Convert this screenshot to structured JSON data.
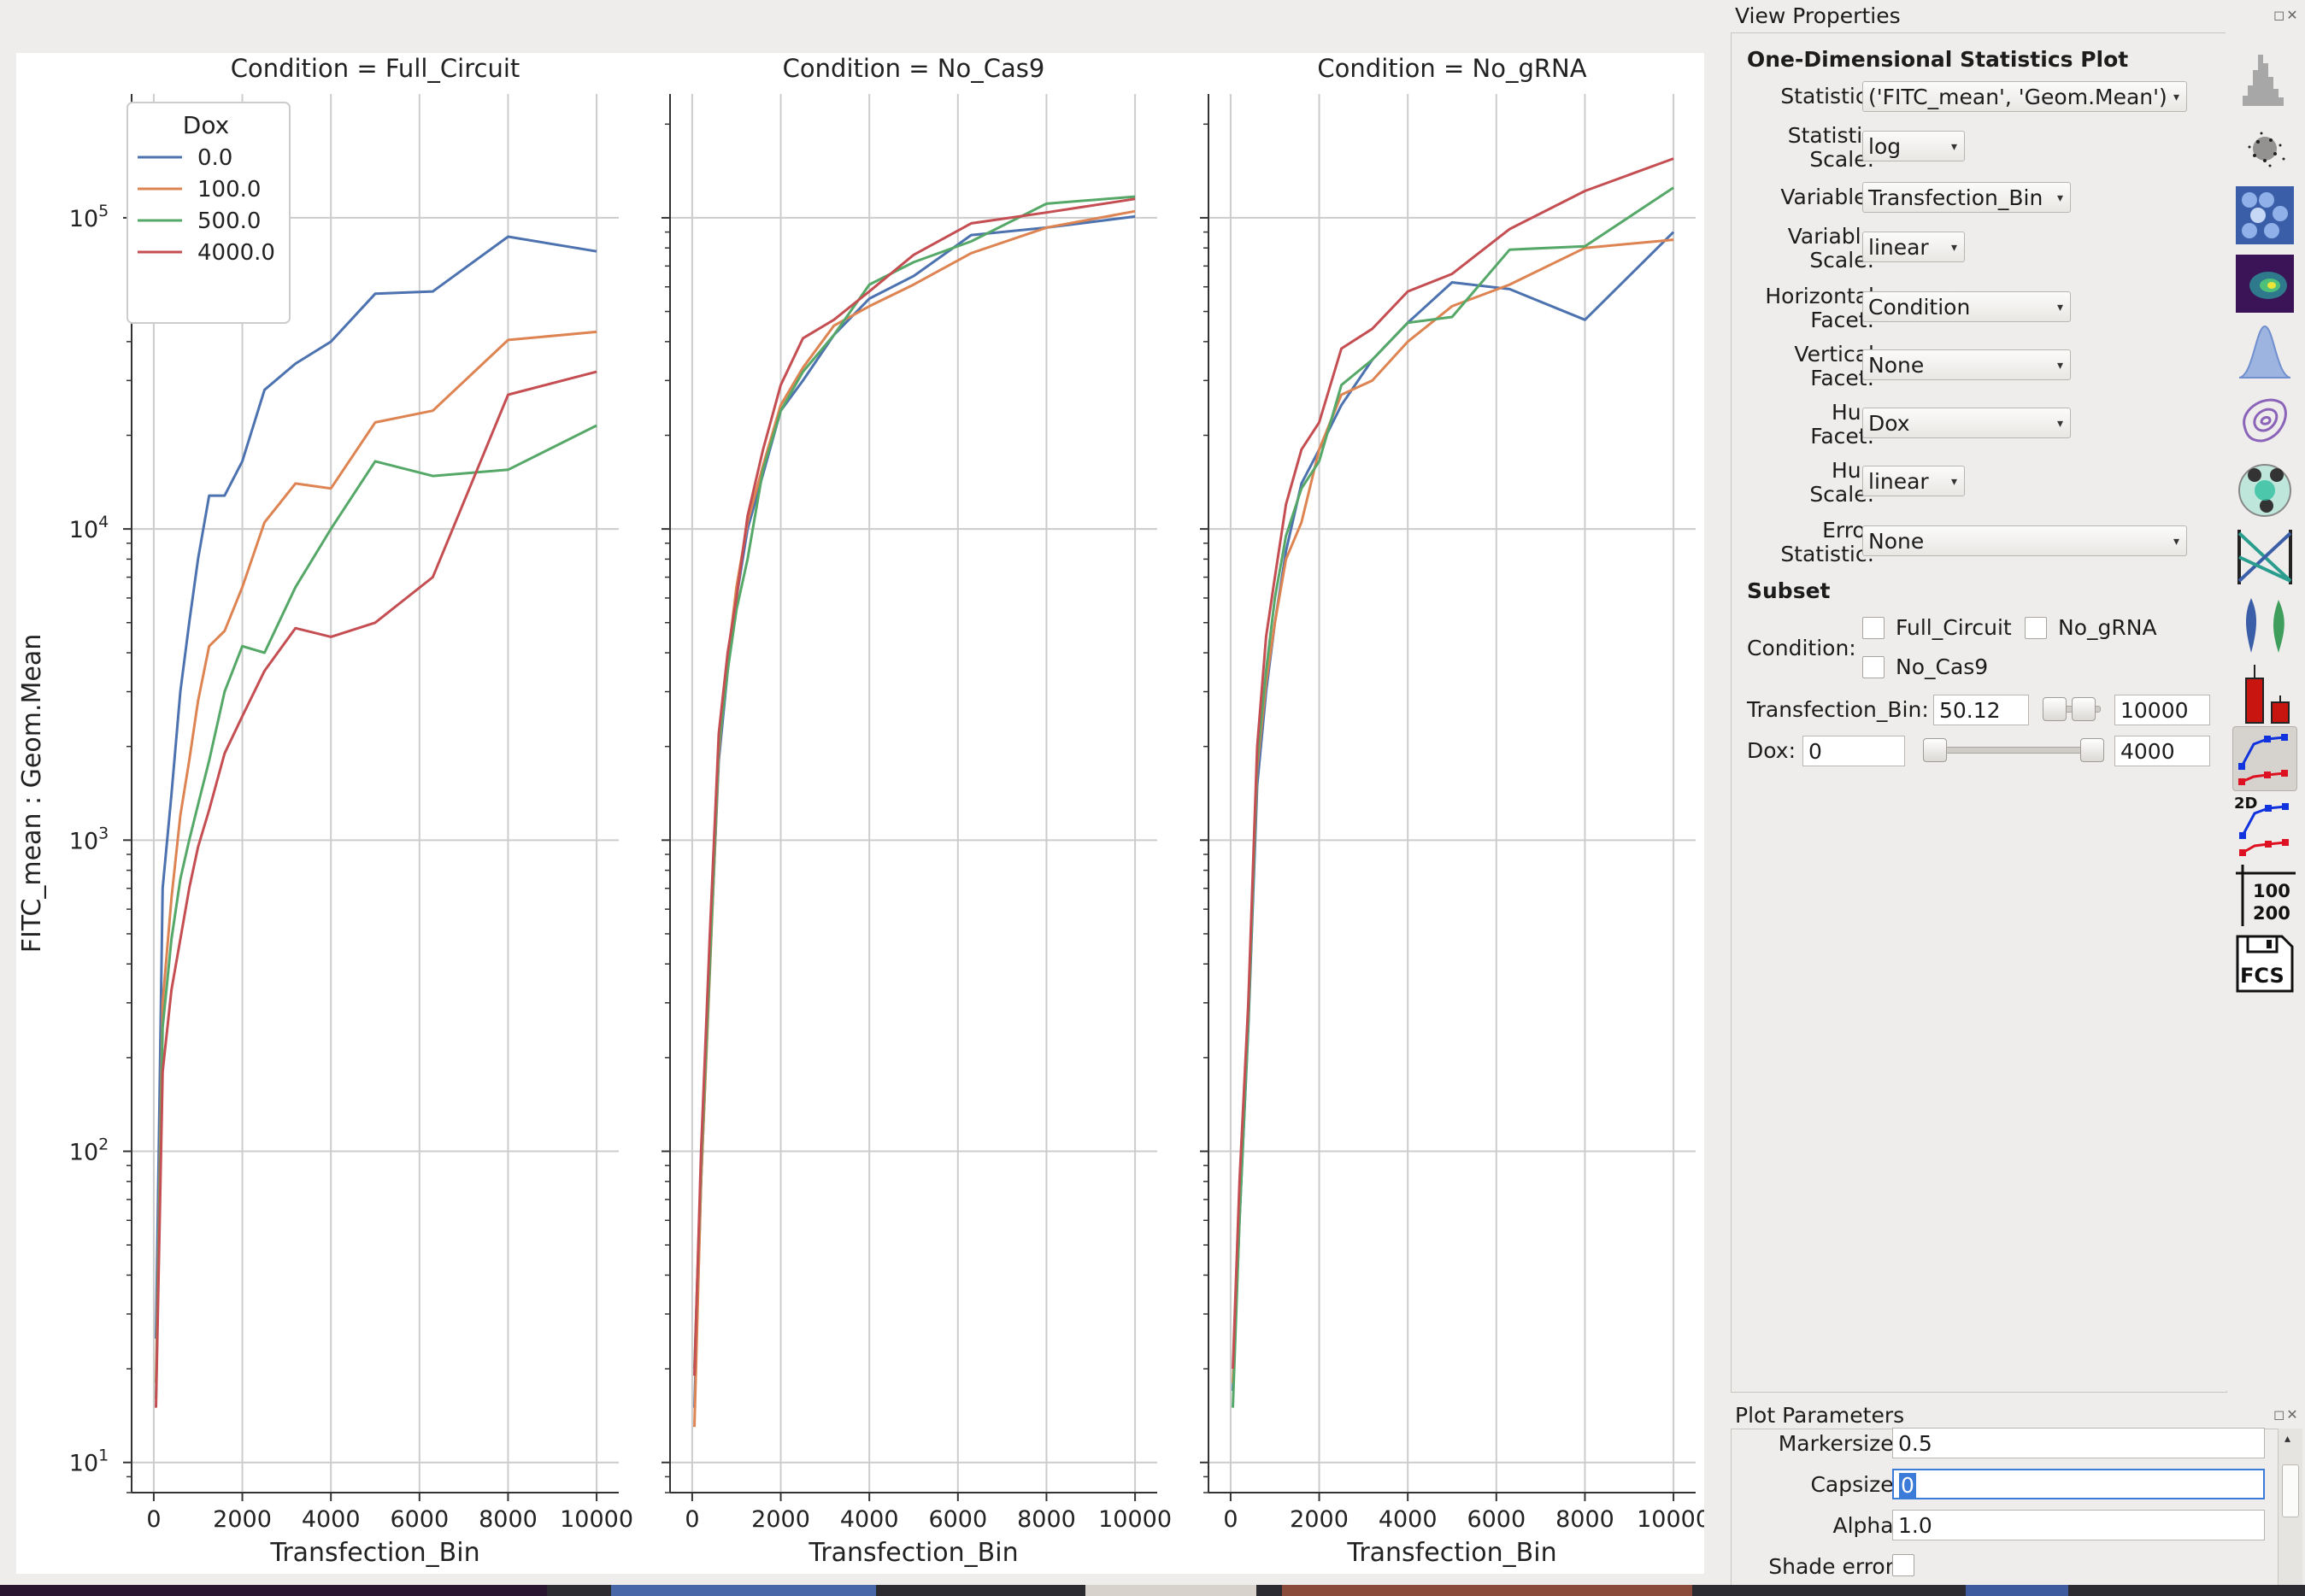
{
  "colors": {
    "series_0": "#4c72b0",
    "series_100": "#dd8452",
    "series_500": "#55a868",
    "series_4000": "#c44e52",
    "grid": "#cccccc",
    "accent": "#3d7bd8"
  },
  "chart_data": [
    {
      "type": "line",
      "title": "Condition = Full_Circuit",
      "xlabel": "Transfection_Bin",
      "ylabel": "FITC_mean : Geom.Mean",
      "yscale": "log",
      "xlim": [
        -500,
        10500
      ],
      "ylim": [
        8,
        250000
      ],
      "x_ticks": [
        "0",
        "2000",
        "4000",
        "6000",
        "8000",
        "10000"
      ],
      "y_ticks": [
        "10^1",
        "10^2",
        "10^3",
        "10^4",
        "10^5"
      ],
      "grid": true,
      "legend": {
        "title": "Dox",
        "placement": "top-left",
        "entries": [
          "0.0",
          "100.0",
          "500.0",
          "4000.0"
        ]
      },
      "x": [
        50,
        200,
        400,
        600,
        800,
        1000,
        1250,
        1600,
        2000,
        2500,
        3200,
        4000,
        5000,
        6300,
        8000,
        10000
      ],
      "series": [
        {
          "name": "0.0",
          "values": [
            25,
            700,
            1400,
            3000,
            5000,
            8000,
            12800,
            12800,
            16500,
            28000,
            34000,
            40000,
            57000,
            58000,
            87000,
            78000
          ]
        },
        {
          "name": "100.0",
          "values": [
            18,
            300,
            650,
            1200,
            1800,
            2800,
            4200,
            4700,
            6500,
            10500,
            14000,
            13500,
            22000,
            24000,
            40500,
            43000
          ]
        },
        {
          "name": "500.0",
          "values": [
            16,
            250,
            480,
            750,
            1000,
            1300,
            1800,
            3000,
            4200,
            4000,
            6500,
            10000,
            16500,
            14800,
            15500,
            21500
          ]
        },
        {
          "name": "4000.0",
          "values": [
            15,
            180,
            330,
            480,
            700,
            950,
            1250,
            1900,
            2500,
            3500,
            4800,
            4500,
            5000,
            7000,
            27000,
            32000
          ]
        }
      ]
    },
    {
      "type": "line",
      "title": "Condition = No_Cas9",
      "xlabel": "Transfection_Bin",
      "yscale": "log",
      "xlim": [
        -500,
        10500
      ],
      "ylim": [
        8,
        250000
      ],
      "x_ticks": [
        "0",
        "2000",
        "4000",
        "6000",
        "8000",
        "10000"
      ],
      "grid": true,
      "x": [
        50,
        200,
        400,
        600,
        800,
        1000,
        1250,
        1600,
        2000,
        2500,
        3200,
        4000,
        5000,
        6300,
        8000,
        10000
      ],
      "series": [
        {
          "name": "0.0",
          "values": [
            15,
            80,
            400,
            1800,
            3500,
            6000,
            10000,
            15000,
            24000,
            30000,
            42000,
            55000,
            65000,
            88000,
            93000,
            101000
          ]
        },
        {
          "name": "100.0",
          "values": [
            13,
            80,
            380,
            1900,
            3800,
            6500,
            10500,
            16000,
            25000,
            33000,
            45000,
            52000,
            61000,
            77000,
            93000,
            105000
          ]
        },
        {
          "name": "500.0",
          "values": [
            20,
            90,
            400,
            2000,
            3500,
            5500,
            8000,
            15500,
            24000,
            32000,
            42000,
            61000,
            72000,
            84000,
            111000,
            117000
          ]
        },
        {
          "name": "4000.0",
          "values": [
            19,
            100,
            500,
            2200,
            4000,
            6000,
            11000,
            18000,
            29000,
            41000,
            47000,
            58000,
            76000,
            96000,
            104000,
            115000
          ]
        }
      ]
    },
    {
      "type": "line",
      "title": "Condition = No_gRNA",
      "xlabel": "Transfection_Bin",
      "yscale": "log",
      "xlim": [
        -500,
        10500
      ],
      "ylim": [
        8,
        250000
      ],
      "x_ticks": [
        "0",
        "2000",
        "4000",
        "6000",
        "8000",
        "10000"
      ],
      "grid": true,
      "x": [
        50,
        200,
        400,
        600,
        800,
        1000,
        1250,
        1600,
        2000,
        2500,
        3200,
        4000,
        5000,
        6300,
        8000,
        10000
      ],
      "series": [
        {
          "name": "0.0",
          "values": [
            17,
            60,
            250,
            1500,
            3000,
            5000,
            8500,
            14000,
            18000,
            25000,
            35000,
            46000,
            62000,
            59000,
            47000,
            90000
          ]
        },
        {
          "name": "100.0",
          "values": [
            18,
            70,
            270,
            1700,
            3200,
            5000,
            8000,
            10500,
            18000,
            27000,
            30000,
            40000,
            52000,
            61000,
            80000,
            85000
          ]
        },
        {
          "name": "500.0",
          "values": [
            15,
            60,
            260,
            1800,
            3500,
            6000,
            9500,
            13500,
            16500,
            29000,
            35000,
            46000,
            48000,
            79000,
            81000,
            125000
          ]
        },
        {
          "name": "4000.0",
          "values": [
            20,
            80,
            300,
            2000,
            4500,
            7000,
            12000,
            18000,
            22000,
            38000,
            44000,
            58000,
            66000,
            92000,
            122000,
            155000
          ]
        }
      ]
    }
  ],
  "view_properties": {
    "panel_title": "View Properties",
    "heading": "One-Dimensional Statistics Plot",
    "statistic_label": "Statistic:",
    "statistic_value": "('FITC_mean', 'Geom.Mean')",
    "statistic_scale_label_1": "Statistic",
    "statistic_scale_label_2": "Scale:",
    "statistic_scale_value": "log",
    "variable_label": "Variable:",
    "variable_value": "Transfection_Bin",
    "variable_scale_label_1": "Variable",
    "variable_scale_label_2": "Scale:",
    "variable_scale_value": "linear",
    "hfacet_label_1": "Horizontal",
    "hfacet_label_2": "Facet:",
    "hfacet_value": "Condition",
    "vfacet_label_1": "Vertical",
    "vfacet_label_2": "Facet:",
    "vfacet_value": "None",
    "huefacet_label_1": "Hue",
    "huefacet_label_2": "Facet:",
    "huefacet_value": "Dox",
    "huescale_label_1": "Hue",
    "huescale_label_2": "Scale:",
    "huescale_value": "linear",
    "error_label_1": "Error",
    "error_label_2": "Statistic:",
    "error_value": "None",
    "subset_heading": "Subset",
    "condition_label": "Condition:",
    "cond_full": "Full_Circuit",
    "cond_nogrna": "No_gRNA",
    "cond_nocas9": "No_Cas9",
    "tbin_label": "Transfection_Bin:",
    "tbin_min": "50.12",
    "tbin_max": "10000",
    "dox_label": "Dox:",
    "dox_min": "0",
    "dox_max": "4000"
  },
  "toolbar": {
    "icons": [
      "histogram-icon",
      "scatter-density-icon",
      "hexbin-icon",
      "density-2d-icon",
      "kde-icon",
      "contour-icon",
      "gaussian-mixture-icon",
      "parallel-coordinates-icon",
      "violin-icon",
      "bar-chart-icon",
      "stats-1d-icon",
      "stats-2d-icon",
      "table-view-icon",
      "export-fcs-icon"
    ],
    "label_2d": "2D",
    "label_100": "100",
    "label_200": "200",
    "label_fcs": "FCS"
  },
  "plot_parameters": {
    "panel_title": "Plot Parameters",
    "markersize_label": "Markersize:",
    "markersize_value": "0.5",
    "capsize_label": "Capsize:",
    "capsize_value": "0",
    "alpha_label": "Alpha:",
    "alpha_value": "1.0",
    "shade_label": "Shade error:"
  }
}
